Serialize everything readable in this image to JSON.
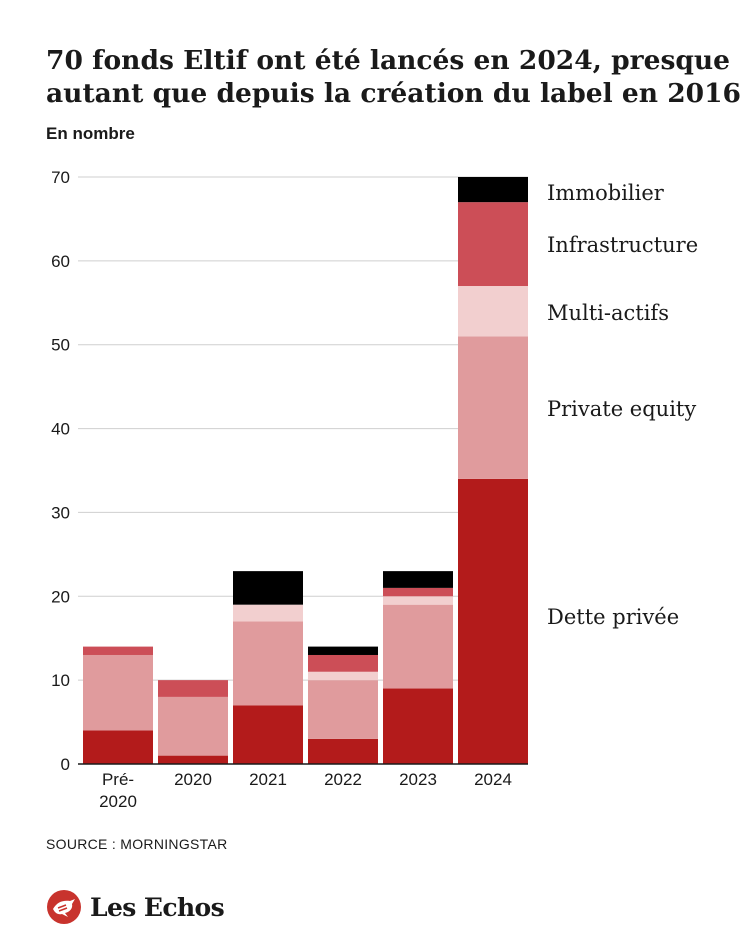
{
  "header": {
    "title_lines": [
      "70 fonds Eltif ont été lancés en 2024, presque",
      "autant que depuis la création du label en 2016"
    ],
    "subtitle": "En nombre"
  },
  "footer": {
    "source": "SOURCE : MORNINGSTAR",
    "brand": "Les Echos",
    "brand_icon": "les-echos-logo-icon"
  },
  "colors": {
    "dette_privee": "#b31b1b",
    "private_equity": "#e09b9d",
    "multi_actifs": "#f2cfcf",
    "infrastructure": "#cc4e57",
    "immobilier": "#000000",
    "grid": "#cfcfcf",
    "text": "#1a1a1a",
    "brand": "#c8332d"
  },
  "chart_data": {
    "type": "bar",
    "stacked": true,
    "categories": [
      [
        "Pré-",
        "2020"
      ],
      [
        "2020"
      ],
      [
        "2021"
      ],
      [
        "2022"
      ],
      [
        "2023"
      ],
      [
        "2024"
      ]
    ],
    "series": [
      {
        "name": "Dette privée",
        "key": "dette_privee",
        "values": [
          4,
          1,
          7,
          3,
          9,
          34
        ]
      },
      {
        "name": "Private equity",
        "key": "private_equity",
        "values": [
          9,
          7,
          10,
          7,
          10,
          17
        ]
      },
      {
        "name": "Multi-actifs",
        "key": "multi_actifs",
        "values": [
          0,
          0,
          2,
          1,
          1,
          6
        ]
      },
      {
        "name": "Infrastructure",
        "key": "infrastructure",
        "values": [
          1,
          2,
          0,
          2,
          1,
          10
        ]
      },
      {
        "name": "Immobilier",
        "key": "immobilier",
        "values": [
          0,
          0,
          4,
          1,
          2,
          3
        ]
      }
    ],
    "ylim": [
      0,
      70
    ],
    "yticks": [
      0,
      10,
      20,
      30,
      40,
      50,
      60,
      70
    ],
    "grid": true,
    "legend": "right-of-last-bar"
  }
}
